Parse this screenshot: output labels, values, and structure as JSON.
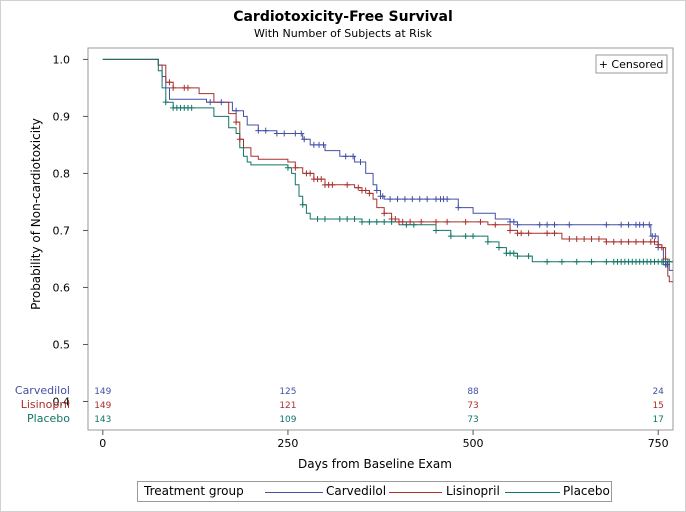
{
  "colors": {
    "carvedilol": "#4450a4",
    "lisinopril": "#a8302c",
    "placebo": "#117566"
  },
  "legend": {
    "title": "Treatment group",
    "items": [
      {
        "label": "Carvedilol",
        "color": "#4450a4"
      },
      {
        "label": "Lisinopril",
        "color": "#a8302c"
      },
      {
        "label": "Placebo",
        "color": "#117566"
      }
    ]
  },
  "chart_data": {
    "type": "line",
    "title": "Cardiotoxicity-Free Survival",
    "subtitle": "With Number of Subjects at Risk",
    "xlabel": "Days from Baseline Exam",
    "ylabel": "Probability of Non-cardiotoxicity",
    "xlim": [
      -20,
      770
    ],
    "ylim": [
      0.35,
      1.02
    ],
    "xticks": [
      0,
      250,
      500,
      750
    ],
    "xtick_labels": [
      "0",
      "250",
      "500",
      "750"
    ],
    "yticks": [
      0.4,
      0.5,
      0.6,
      0.7,
      0.8,
      0.9,
      1.0
    ],
    "ytick_labels": [
      "0.4",
      "0.5",
      "0.6",
      "0.7",
      "0.8",
      "0.9",
      "1.0"
    ],
    "censor_legend": "+ Censored",
    "series": [
      {
        "name": "Carvedilol",
        "color": "#4450a4",
        "steps": [
          [
            0,
            1.0
          ],
          [
            75,
            0.99
          ],
          [
            80,
            0.97
          ],
          [
            85,
            0.95
          ],
          [
            90,
            0.93
          ],
          [
            140,
            0.925
          ],
          [
            175,
            0.91
          ],
          [
            190,
            0.9
          ],
          [
            195,
            0.885
          ],
          [
            210,
            0.875
          ],
          [
            235,
            0.87
          ],
          [
            270,
            0.86
          ],
          [
            280,
            0.85
          ],
          [
            300,
            0.84
          ],
          [
            320,
            0.83
          ],
          [
            340,
            0.82
          ],
          [
            355,
            0.8
          ],
          [
            365,
            0.78
          ],
          [
            370,
            0.77
          ],
          [
            375,
            0.76
          ],
          [
            380,
            0.755
          ],
          [
            480,
            0.74
          ],
          [
            500,
            0.73
          ],
          [
            530,
            0.72
          ],
          [
            550,
            0.715
          ],
          [
            560,
            0.71
          ],
          [
            740,
            0.69
          ],
          [
            750,
            0.67
          ],
          [
            757,
            0.64
          ],
          [
            765,
            0.63
          ],
          [
            770,
            0.63
          ]
        ],
        "censor_x": [
          145,
          160,
          180,
          210,
          220,
          235,
          245,
          260,
          268,
          272,
          285,
          292,
          298,
          328,
          338,
          348,
          370,
          375,
          378,
          388,
          398,
          408,
          418,
          428,
          438,
          450,
          456,
          460,
          465,
          480,
          550,
          555,
          560,
          590,
          600,
          610,
          630,
          680,
          700,
          710,
          720,
          725,
          730,
          738,
          742,
          746,
          750,
          760,
          762
        ]
      },
      {
        "name": "Lisinopril",
        "color": "#a8302c",
        "steps": [
          [
            0,
            1.0
          ],
          [
            75,
            0.99
          ],
          [
            85,
            0.96
          ],
          [
            95,
            0.95
          ],
          [
            130,
            0.94
          ],
          [
            150,
            0.925
          ],
          [
            170,
            0.905
          ],
          [
            180,
            0.89
          ],
          [
            185,
            0.86
          ],
          [
            190,
            0.845
          ],
          [
            200,
            0.83
          ],
          [
            210,
            0.825
          ],
          [
            250,
            0.82
          ],
          [
            260,
            0.81
          ],
          [
            270,
            0.8
          ],
          [
            285,
            0.79
          ],
          [
            300,
            0.78
          ],
          [
            340,
            0.775
          ],
          [
            350,
            0.77
          ],
          [
            360,
            0.765
          ],
          [
            365,
            0.755
          ],
          [
            370,
            0.74
          ],
          [
            380,
            0.73
          ],
          [
            390,
            0.72
          ],
          [
            400,
            0.715
          ],
          [
            520,
            0.71
          ],
          [
            550,
            0.7
          ],
          [
            560,
            0.695
          ],
          [
            620,
            0.685
          ],
          [
            680,
            0.68
          ],
          [
            750,
            0.675
          ],
          [
            755,
            0.67
          ],
          [
            760,
            0.65
          ],
          [
            763,
            0.62
          ],
          [
            765,
            0.61
          ],
          [
            770,
            0.61
          ]
        ],
        "censor_x": [
          90,
          95,
          110,
          115,
          180,
          185,
          260,
          275,
          280,
          285,
          290,
          295,
          300,
          305,
          310,
          330,
          345,
          350,
          355,
          360,
          380,
          390,
          395,
          400,
          405,
          415,
          430,
          450,
          465,
          490,
          510,
          530,
          550,
          560,
          565,
          575,
          600,
          610,
          630,
          640,
          650,
          660,
          670,
          680,
          690,
          700,
          710,
          720,
          730,
          740,
          745,
          750,
          755,
          760
        ]
      },
      {
        "name": "Placebo",
        "color": "#117566",
        "steps": [
          [
            0,
            1.0
          ],
          [
            75,
            0.98
          ],
          [
            80,
            0.95
          ],
          [
            85,
            0.925
          ],
          [
            95,
            0.915
          ],
          [
            120,
            0.915
          ],
          [
            150,
            0.9
          ],
          [
            170,
            0.88
          ],
          [
            180,
            0.87
          ],
          [
            185,
            0.845
          ],
          [
            190,
            0.83
          ],
          [
            195,
            0.82
          ],
          [
            200,
            0.815
          ],
          [
            250,
            0.81
          ],
          [
            255,
            0.8
          ],
          [
            260,
            0.78
          ],
          [
            265,
            0.76
          ],
          [
            270,
            0.745
          ],
          [
            275,
            0.73
          ],
          [
            280,
            0.72
          ],
          [
            350,
            0.715
          ],
          [
            400,
            0.71
          ],
          [
            450,
            0.7
          ],
          [
            470,
            0.69
          ],
          [
            520,
            0.68
          ],
          [
            535,
            0.67
          ],
          [
            545,
            0.66
          ],
          [
            560,
            0.655
          ],
          [
            580,
            0.645
          ],
          [
            770,
            0.645
          ]
        ],
        "censor_x": [
          85,
          95,
          100,
          105,
          110,
          115,
          120,
          250,
          270,
          290,
          300,
          320,
          330,
          340,
          350,
          360,
          370,
          380,
          390,
          410,
          420,
          450,
          470,
          490,
          500,
          520,
          535,
          545,
          550,
          555,
          560,
          575,
          600,
          620,
          640,
          660,
          680,
          690,
          695,
          700,
          705,
          710,
          715,
          720,
          725,
          730,
          735,
          740,
          745,
          750,
          755,
          760,
          765
        ]
      }
    ],
    "at_risk": {
      "x": [
        0,
        250,
        500,
        750
      ],
      "groups": [
        {
          "name": "Carvedilol",
          "values": [
            149,
            125,
            88,
            24
          ]
        },
        {
          "name": "Lisinopril",
          "values": [
            149,
            121,
            73,
            15
          ]
        },
        {
          "name": "Placebo",
          "values": [
            143,
            109,
            73,
            17
          ]
        }
      ]
    }
  }
}
